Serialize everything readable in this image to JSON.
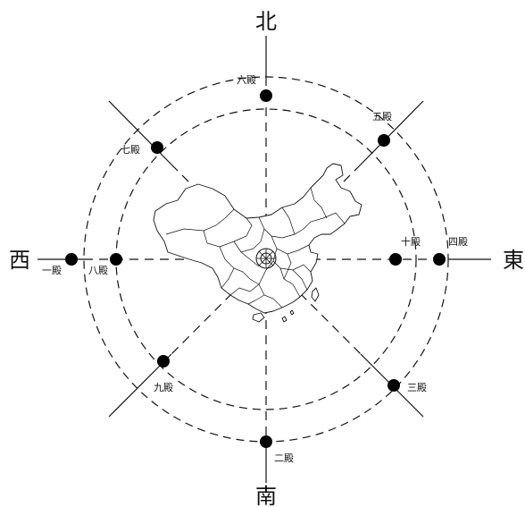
{
  "directions": {
    "north": "北",
    "south": "南",
    "east": "東",
    "west": "西"
  },
  "halls": {
    "h1": "一殿",
    "h2": "二殿",
    "h3": "三殿",
    "h4": "四殿",
    "h5": "五殿",
    "h6": "六殿",
    "h7": "七殿",
    "h8": "八殿",
    "h9": "九殿",
    "h10": "十殿"
  }
}
